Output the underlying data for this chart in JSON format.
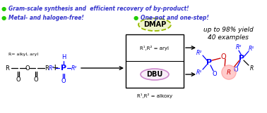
{
  "bg_color": "#ffffff",
  "fig_width": 3.78,
  "fig_height": 1.61,
  "dpi": 100,
  "dmap_text": "DMAP",
  "dbu_text": "DBU",
  "aryl_text": "R¹,R² = aryl",
  "alkoxy_text": "R¹,R² = alkoxy",
  "r_label": "R= alkyl, aryl",
  "product_line1": "40 examples",
  "product_line2": "up to 98% yield",
  "blue": "#0000ff",
  "green": "#22cc00",
  "black": "#000000",
  "red": "#cc0000",
  "dmap_oval_edge": "#99bb00",
  "dmap_oval_face": "#f0f5cc",
  "dbu_oval_edge": "#cc88cc",
  "dbu_oval_face": "#f8eef8",
  "r_circle_face": "#ffcccc",
  "bullet_color": "#3333cc"
}
